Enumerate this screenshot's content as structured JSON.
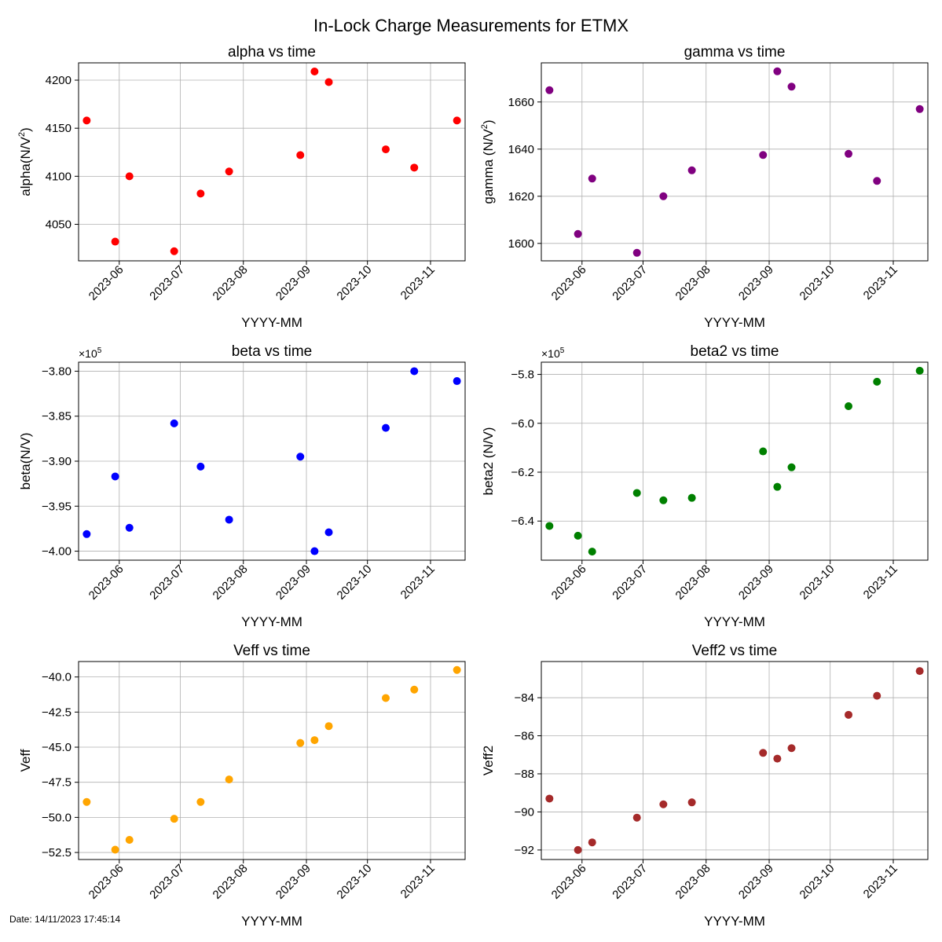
{
  "suptitle": "In-Lock Charge Measurements for ETMX",
  "footer": "Date: 14/11/2023 17:45:14",
  "chart_data": [
    {
      "type": "scatter",
      "title": "alpha vs time",
      "xlabel": "YYYY-MM",
      "ylabel": "alpha(N/V²)",
      "ylabel_base": "alpha(N/V",
      "ylabel_sup": "2",
      "ylabel_tail": ")",
      "color": "#ff0000",
      "offset_label": "",
      "yticks": [
        4050,
        4100,
        4150,
        4200
      ],
      "ytick_labels": [
        "4050",
        "4100",
        "4150",
        "4200"
      ],
      "ylim": [
        4012,
        4218
      ],
      "xticks": [
        "2023-06",
        "2023-07",
        "2023-08",
        "2023-09",
        "2023-10",
        "2023-11"
      ],
      "xlim": [
        "2023-05-12",
        "2023-11-18"
      ],
      "points": [
        {
          "x": "2023-05-16",
          "y": 4158
        },
        {
          "x": "2023-05-30",
          "y": 4032
        },
        {
          "x": "2023-06-06",
          "y": 4100
        },
        {
          "x": "2023-06-28",
          "y": 4022
        },
        {
          "x": "2023-07-11",
          "y": 4082
        },
        {
          "x": "2023-07-25",
          "y": 4105
        },
        {
          "x": "2023-08-29",
          "y": 4122
        },
        {
          "x": "2023-09-05",
          "y": 4209
        },
        {
          "x": "2023-09-12",
          "y": 4198
        },
        {
          "x": "2023-10-10",
          "y": 4128
        },
        {
          "x": "2023-10-24",
          "y": 4109
        },
        {
          "x": "2023-11-14",
          "y": 4158
        }
      ]
    },
    {
      "type": "scatter",
      "title": "gamma vs time",
      "xlabel": "YYYY-MM",
      "ylabel": "gamma (N/V²)",
      "ylabel_base": "gamma (N/V",
      "ylabel_sup": "2",
      "ylabel_tail": ")",
      "color": "#800080",
      "offset_label": "",
      "yticks": [
        1600,
        1620,
        1640,
        1660
      ],
      "ytick_labels": [
        "1600",
        "1620",
        "1640",
        "1660"
      ],
      "ylim": [
        1592.6,
        1676.6
      ],
      "xticks": [
        "2023-06",
        "2023-07",
        "2023-08",
        "2023-09",
        "2023-10",
        "2023-11"
      ],
      "xlim": [
        "2023-05-12",
        "2023-11-18"
      ],
      "points": [
        {
          "x": "2023-05-16",
          "y": 1665
        },
        {
          "x": "2023-05-30",
          "y": 1604
        },
        {
          "x": "2023-06-06",
          "y": 1627.5
        },
        {
          "x": "2023-06-28",
          "y": 1596
        },
        {
          "x": "2023-07-11",
          "y": 1620
        },
        {
          "x": "2023-07-25",
          "y": 1631
        },
        {
          "x": "2023-08-29",
          "y": 1637.5
        },
        {
          "x": "2023-09-05",
          "y": 1673
        },
        {
          "x": "2023-09-12",
          "y": 1666.5
        },
        {
          "x": "2023-10-10",
          "y": 1638
        },
        {
          "x": "2023-10-24",
          "y": 1626.5
        },
        {
          "x": "2023-11-14",
          "y": 1657
        }
      ]
    },
    {
      "type": "scatter",
      "title": "beta vs time",
      "xlabel": "YYYY-MM",
      "ylabel": "beta(N/V)",
      "ylabel_base": "beta(N/V)",
      "ylabel_sup": "",
      "ylabel_tail": "",
      "color": "#0000ff",
      "offset_label": "×10",
      "offset_exp": "5",
      "yticks": [
        -400000,
        -395000,
        -390000,
        -385000,
        -380000
      ],
      "ytick_labels": [
        "−4.00",
        "−3.95",
        "−3.90",
        "−3.85",
        "−3.80"
      ],
      "ylim": [
        -401000,
        -379000
      ],
      "xticks": [
        "2023-06",
        "2023-07",
        "2023-08",
        "2023-09",
        "2023-10",
        "2023-11"
      ],
      "xlim": [
        "2023-05-12",
        "2023-11-18"
      ],
      "points": [
        {
          "x": "2023-05-16",
          "y": -398100
        },
        {
          "x": "2023-05-30",
          "y": -391700
        },
        {
          "x": "2023-06-06",
          "y": -397400
        },
        {
          "x": "2023-06-28",
          "y": -385800
        },
        {
          "x": "2023-07-11",
          "y": -390600
        },
        {
          "x": "2023-07-25",
          "y": -396500
        },
        {
          "x": "2023-08-29",
          "y": -389500
        },
        {
          "x": "2023-09-05",
          "y": -400000
        },
        {
          "x": "2023-09-12",
          "y": -397900
        },
        {
          "x": "2023-10-10",
          "y": -386300
        },
        {
          "x": "2023-10-24",
          "y": -380000
        },
        {
          "x": "2023-11-14",
          "y": -381100
        }
      ]
    },
    {
      "type": "scatter",
      "title": "beta2 vs time",
      "xlabel": "YYYY-MM",
      "ylabel": "beta2 (N/V)",
      "ylabel_base": "beta2 (N/V)",
      "ylabel_sup": "",
      "ylabel_tail": "",
      "color": "#008000",
      "offset_label": "×10",
      "offset_exp": "5",
      "yticks": [
        -640000,
        -620000,
        -600000,
        -580000
      ],
      "ytick_labels": [
        "−6.4",
        "−6.2",
        "−6.0",
        "−5.8"
      ],
      "ylim": [
        -656000,
        -575000
      ],
      "xticks": [
        "2023-06",
        "2023-07",
        "2023-08",
        "2023-09",
        "2023-10",
        "2023-11"
      ],
      "xlim": [
        "2023-05-12",
        "2023-11-18"
      ],
      "points": [
        {
          "x": "2023-05-16",
          "y": -642000
        },
        {
          "x": "2023-05-30",
          "y": -646000
        },
        {
          "x": "2023-06-06",
          "y": -652500
        },
        {
          "x": "2023-06-28",
          "y": -628500
        },
        {
          "x": "2023-07-11",
          "y": -631500
        },
        {
          "x": "2023-07-25",
          "y": -630500
        },
        {
          "x": "2023-08-29",
          "y": -611500
        },
        {
          "x": "2023-09-05",
          "y": -626000
        },
        {
          "x": "2023-09-12",
          "y": -618000
        },
        {
          "x": "2023-10-10",
          "y": -593000
        },
        {
          "x": "2023-10-24",
          "y": -583000
        },
        {
          "x": "2023-11-14",
          "y": -578500
        }
      ]
    },
    {
      "type": "scatter",
      "title": "Veff vs time",
      "xlabel": "YYYY-MM",
      "ylabel": "Veff",
      "ylabel_base": "Veff",
      "ylabel_sup": "",
      "ylabel_tail": "",
      "color": "#ffa500",
      "offset_label": "",
      "yticks": [
        -52.5,
        -50.0,
        -47.5,
        -45.0,
        -42.5,
        -40.0
      ],
      "ytick_labels": [
        "−52.5",
        "−50.0",
        "−47.5",
        "−45.0",
        "−42.5",
        "−40.0"
      ],
      "ylim": [
        -53.0,
        -38.9
      ],
      "xticks": [
        "2023-06",
        "2023-07",
        "2023-08",
        "2023-09",
        "2023-10",
        "2023-11"
      ],
      "xlim": [
        "2023-05-12",
        "2023-11-18"
      ],
      "points": [
        {
          "x": "2023-05-16",
          "y": -48.9
        },
        {
          "x": "2023-05-30",
          "y": -52.3
        },
        {
          "x": "2023-06-06",
          "y": -51.6
        },
        {
          "x": "2023-06-28",
          "y": -50.1
        },
        {
          "x": "2023-07-11",
          "y": -48.9
        },
        {
          "x": "2023-07-25",
          "y": -47.3
        },
        {
          "x": "2023-08-29",
          "y": -44.7
        },
        {
          "x": "2023-09-05",
          "y": -44.5
        },
        {
          "x": "2023-09-12",
          "y": -43.5
        },
        {
          "x": "2023-10-10",
          "y": -41.5
        },
        {
          "x": "2023-10-24",
          "y": -40.9
        },
        {
          "x": "2023-11-14",
          "y": -39.5
        }
      ]
    },
    {
      "type": "scatter",
      "title": "Veff2 vs time",
      "xlabel": "YYYY-MM",
      "ylabel": "Veff2",
      "ylabel_base": "Veff2",
      "ylabel_sup": "",
      "ylabel_tail": "",
      "color": "#a52a2a",
      "offset_label": "",
      "yticks": [
        -92,
        -90,
        -88,
        -86,
        -84
      ],
      "ytick_labels": [
        "−92",
        "−90",
        "−88",
        "−86",
        "−84"
      ],
      "ylim": [
        -92.5,
        -82.1
      ],
      "xticks": [
        "2023-06",
        "2023-07",
        "2023-08",
        "2023-09",
        "2023-10",
        "2023-11"
      ],
      "xlim": [
        "2023-05-12",
        "2023-11-18"
      ],
      "points": [
        {
          "x": "2023-05-16",
          "y": -89.3
        },
        {
          "x": "2023-05-30",
          "y": -92.0
        },
        {
          "x": "2023-06-06",
          "y": -91.6
        },
        {
          "x": "2023-06-28",
          "y": -90.3
        },
        {
          "x": "2023-07-11",
          "y": -89.6
        },
        {
          "x": "2023-07-25",
          "y": -89.5
        },
        {
          "x": "2023-08-29",
          "y": -86.9
        },
        {
          "x": "2023-09-05",
          "y": -87.2
        },
        {
          "x": "2023-09-12",
          "y": -86.65
        },
        {
          "x": "2023-10-10",
          "y": -84.9
        },
        {
          "x": "2023-10-24",
          "y": -83.9
        },
        {
          "x": "2023-11-14",
          "y": -82.6
        }
      ]
    }
  ]
}
